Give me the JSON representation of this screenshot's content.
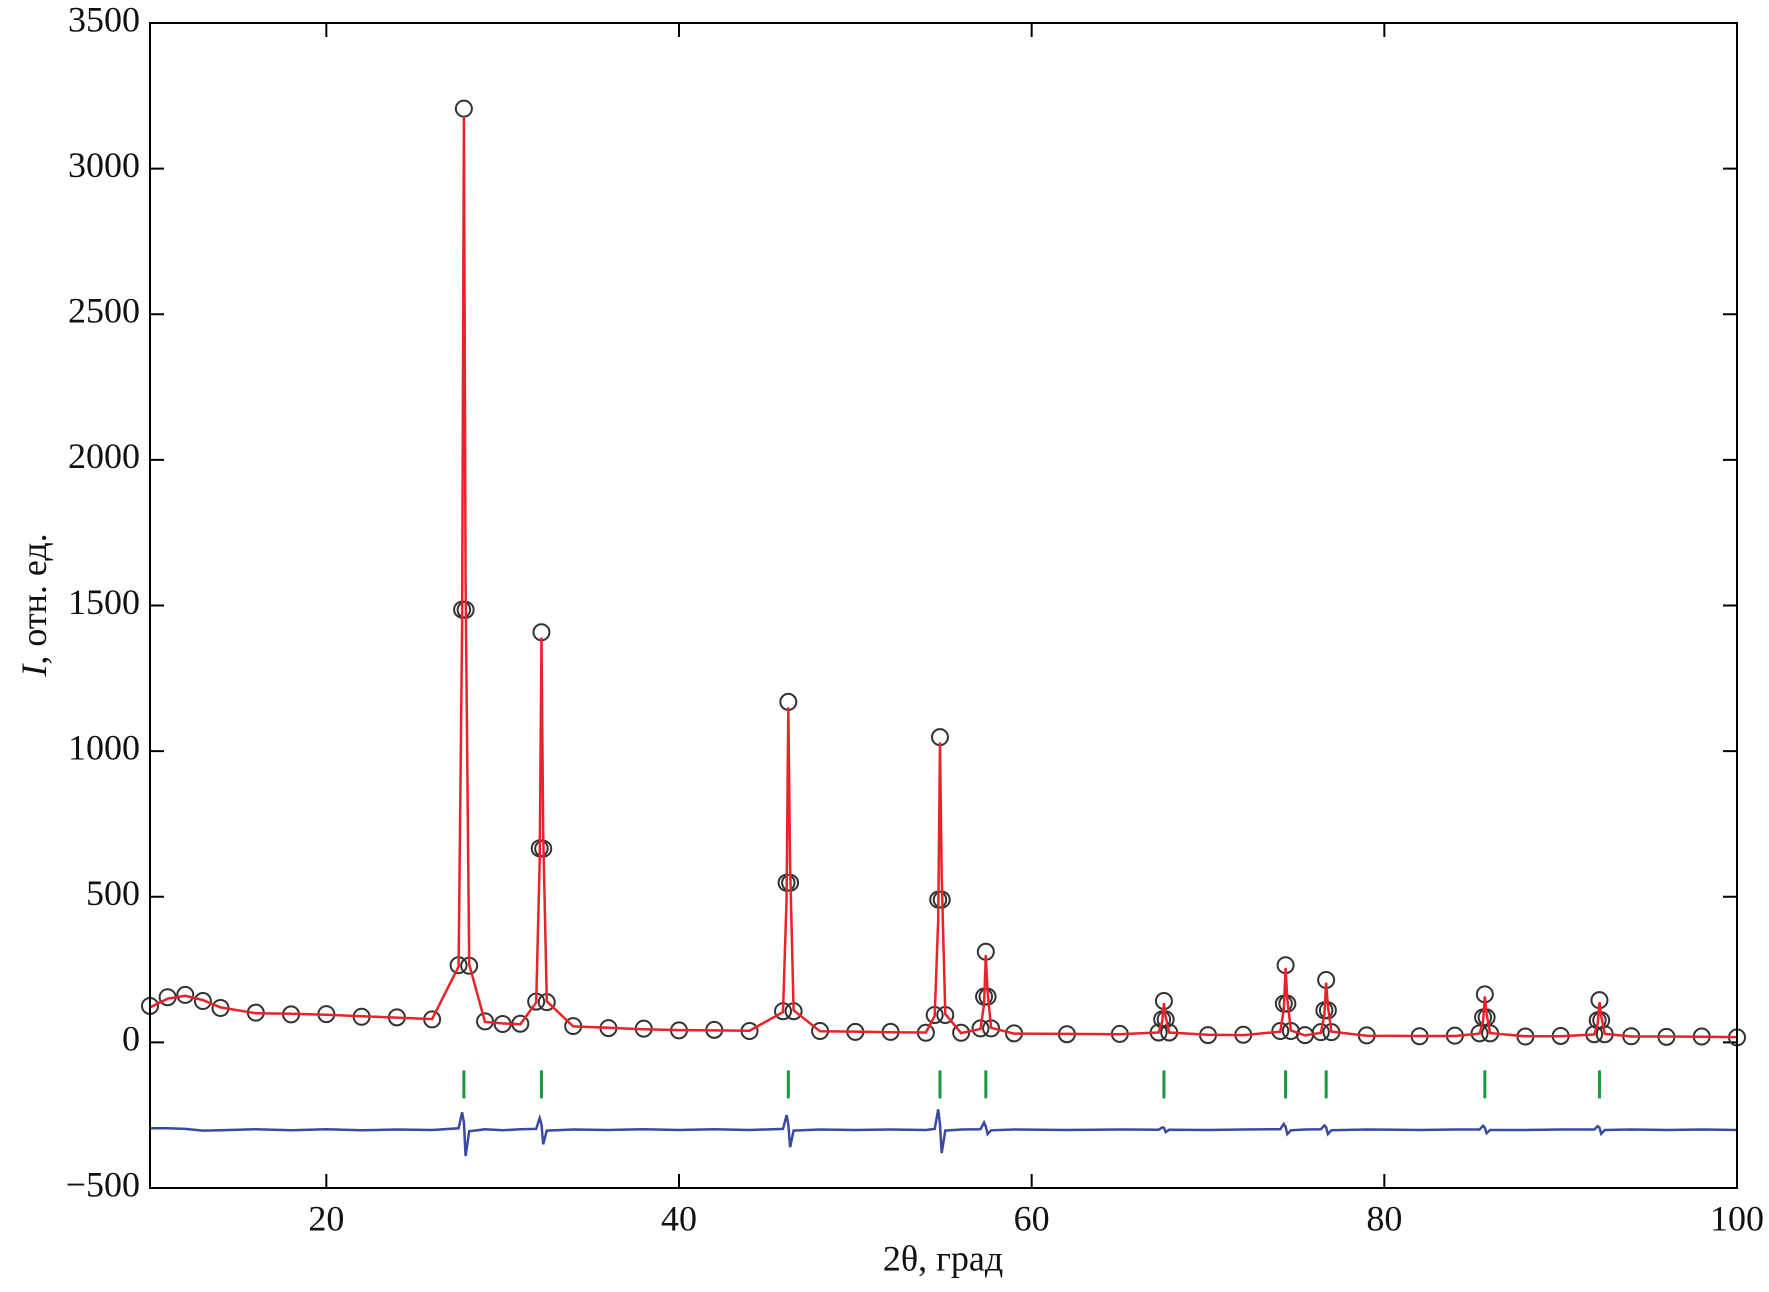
{
  "chart_data": {
    "type": "rietveld",
    "x_label": "2θ, град",
    "y_label_symbol": "I",
    "y_label": ", отн. ед.",
    "xlim": [
      10,
      100
    ],
    "ylim": [
      -500,
      3500
    ],
    "xticks": [
      20,
      40,
      60,
      80,
      100
    ],
    "yticks": [
      {
        "value": -500,
        "label": "−500"
      },
      0,
      500,
      1000,
      1500,
      2000,
      2500,
      3000,
      3500
    ],
    "x": [
      10,
      11,
      12,
      13,
      14,
      16,
      18,
      20,
      22,
      24,
      26,
      27.5,
      27.7,
      27.8,
      27.9,
      28.1,
      29,
      30,
      31,
      31.9,
      32.1,
      32.2,
      32.3,
      32.5,
      34,
      36,
      38,
      40,
      42,
      44,
      45.9,
      46.1,
      46.2,
      46.3,
      46.5,
      48,
      50,
      52,
      54,
      54.5,
      54.7,
      54.8,
      54.9,
      55.1,
      56,
      57.1,
      57.3,
      57.4,
      57.5,
      57.7,
      59,
      62,
      65,
      67.2,
      67.4,
      67.5,
      67.6,
      67.8,
      70,
      72,
      74.1,
      74.3,
      74.4,
      74.5,
      74.7,
      75.5,
      76.4,
      76.6,
      76.7,
      76.8,
      77.0,
      79,
      82,
      84,
      85.4,
      85.6,
      85.7,
      85.8,
      86.0,
      88,
      90,
      91.9,
      92.1,
      92.2,
      92.3,
      92.5,
      94,
      96,
      98,
      100
    ],
    "series": [
      {
        "type": "scatter",
        "color": "#333333",
        "values": [
          125,
          155,
          163,
          142,
          118,
          102,
          96,
          97,
          88,
          86,
          79,
          265,
          1486,
          3206,
          1485,
          263,
          72,
          63,
          64,
          140,
          666,
          1408,
          665,
          138,
          56,
          49,
          47,
          41,
          43,
          39,
          107,
          548,
          1169,
          548,
          107,
          39,
          36,
          36,
          33,
          94,
          490,
          1048,
          490,
          94,
          33,
          48,
          157,
          311,
          157,
          48,
          31,
          28,
          29,
          34,
          79,
          142,
          79,
          34,
          25,
          26,
          39,
          133,
          265,
          133,
          39,
          25,
          35,
          110,
          214,
          110,
          35,
          24,
          21,
          23,
          31,
          86,
          165,
          86,
          31,
          20,
          22,
          28,
          76,
          145,
          76,
          28,
          21,
          19,
          20,
          17
        ]
      },
      {
        "type": "line",
        "color": "#e8232a",
        "values": [
          120,
          150,
          160,
          145,
          120,
          100,
          98,
          95,
          90,
          85,
          80,
          260,
          1426,
          3180,
          1575,
          268,
          70,
          65,
          62,
          137,
          626,
          1390,
          715,
          141,
          55,
          50,
          45,
          42,
          41,
          40,
          104,
          498,
          1150,
          608,
          110,
          38,
          37,
          35,
          34,
          91,
          420,
          1030,
          570,
          97,
          32,
          46,
          132,
          300,
          172,
          50,
          30,
          29,
          28,
          34,
          71,
          135,
          87,
          34,
          26,
          25,
          37,
          113,
          255,
          148,
          41,
          24,
          33,
          95,
          205,
          125,
          37,
          23,
          22,
          22,
          30,
          72,
          158,
          98,
          32,
          21,
          21,
          27,
          64,
          138,
          90,
          29,
          20,
          20,
          19,
          18
        ]
      },
      {
        "type": "line",
        "color": "#3a4aa0",
        "values": [
          -295,
          -295,
          -297,
          -303,
          -302,
          -298,
          -302,
          -298,
          -302,
          -299,
          -301,
          -295,
          -240,
          -274,
          -390,
          -305,
          -298,
          -302,
          -298,
          -297,
          -260,
          -282,
          -350,
          -303,
          -299,
          -301,
          -298,
          -301,
          -298,
          -301,
          -297,
          -250,
          -281,
          -360,
          -303,
          -299,
          -301,
          -299,
          -301,
          -297,
          -230,
          -282,
          -380,
          -303,
          -299,
          -298,
          -275,
          -289,
          -315,
          -302,
          -299,
          -301,
          -299,
          -300,
          -292,
          -293,
          -308,
          -300,
          -301,
          -299,
          -298,
          -280,
          -290,
          -315,
          -302,
          -299,
          -298,
          -285,
          -291,
          -315,
          -302,
          -299,
          -301,
          -299,
          -299,
          -286,
          -293,
          -312,
          -301,
          -301,
          -299,
          -299,
          -288,
          -293,
          -314,
          -301,
          -299,
          -301,
          -299,
          -301
        ]
      }
    ],
    "bragg_positions": [
      27.8,
      32.2,
      46.2,
      54.8,
      57.4,
      67.5,
      74.4,
      76.7,
      85.7,
      92.2
    ],
    "bragg_color": "#1a9a3a"
  }
}
